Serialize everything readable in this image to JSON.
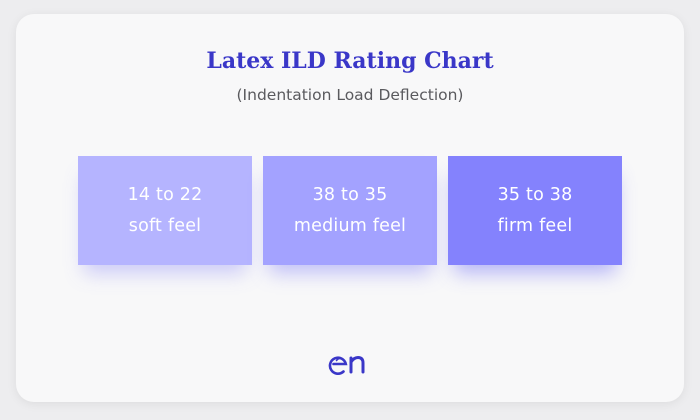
{
  "title": "Latex ILD Rating Chart",
  "subtitle": "(Indentation Load Deflection)",
  "tiles": [
    {
      "range": "14 to 22",
      "label": "soft feel",
      "color": "#b5b4ff"
    },
    {
      "range": "38 to 35",
      "label": "medium feel",
      "color": "#a3a2ff"
    },
    {
      "range": "35 to 38",
      "label": "firm feel",
      "color": "#8482fd"
    }
  ],
  "logo": {
    "icon": "en-logo-icon",
    "color": "#3a37c8"
  },
  "colors": {
    "title": "#3a37c8",
    "subtitle": "#5a5a5e",
    "card": "#f8f8f9",
    "background": "#ededef"
  }
}
